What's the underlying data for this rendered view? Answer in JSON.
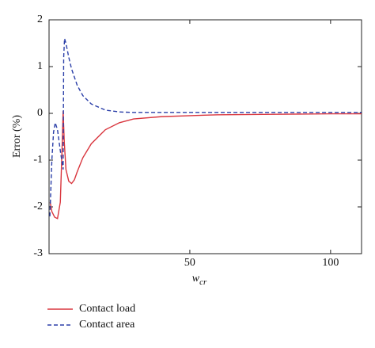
{
  "chart_data": {
    "type": "line",
    "y_label": "Error (%)",
    "x_label": "w",
    "x_label_sub": "cr",
    "xlim": [
      0,
      111
    ],
    "ylim": [
      -3,
      2
    ],
    "xticks": [
      50,
      100
    ],
    "yticks": [
      -3,
      -2,
      -1,
      0,
      1,
      2
    ],
    "series": [
      {
        "name": "Contact load",
        "color": "#d9363e",
        "dash": false,
        "x": [
          0.4,
          1,
          2,
          3,
          4,
          4.6,
          5,
          5.4,
          6,
          7,
          8,
          9,
          10,
          12,
          15,
          20,
          25,
          30,
          40,
          50,
          60,
          80,
          100,
          111
        ],
        "values": [
          -1.9,
          -2.1,
          -2.22,
          -2.25,
          -1.9,
          -0.8,
          0.05,
          -0.6,
          -1.2,
          -1.45,
          -1.5,
          -1.42,
          -1.25,
          -0.95,
          -0.65,
          -0.35,
          -0.2,
          -0.12,
          -0.07,
          -0.05,
          -0.03,
          -0.02,
          -0.01,
          -0.01
        ]
      },
      {
        "name": "Contact area",
        "color": "#2b3fa8",
        "dash": true,
        "x": [
          0.3,
          1,
          1.6,
          2.2,
          3,
          4,
          5,
          5.2,
          5.5,
          6,
          7,
          8,
          10,
          12,
          15,
          20,
          25,
          30,
          50,
          80,
          111
        ],
        "values": [
          -2.2,
          -1.0,
          -0.4,
          -0.2,
          -0.35,
          -0.8,
          -1.2,
          1.2,
          1.6,
          1.5,
          1.2,
          0.95,
          0.6,
          0.38,
          0.2,
          0.07,
          0.03,
          0.02,
          0.02,
          0.02,
          0.02
        ]
      }
    ]
  }
}
